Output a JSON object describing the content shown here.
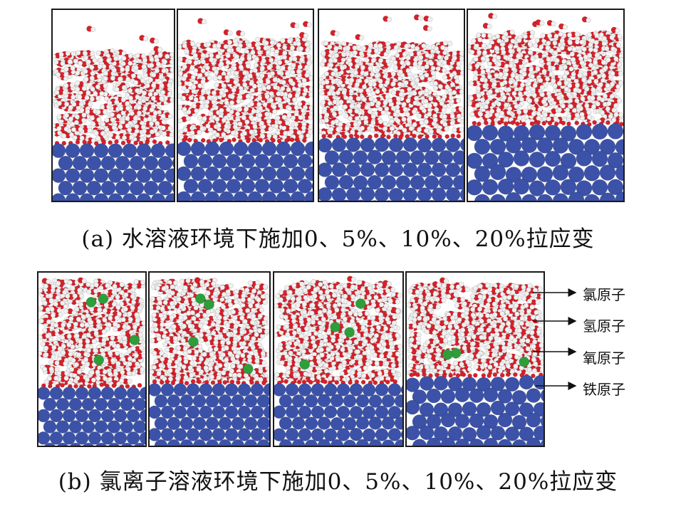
{
  "figure_a": {
    "caption": "(a) 水溶液环境下施加0、5%、10%、20%拉应变",
    "panels": [
      {
        "strain": "0"
      },
      {
        "strain": "5%"
      },
      {
        "strain": "10%"
      },
      {
        "strain": "20%"
      }
    ]
  },
  "figure_b": {
    "caption": "(b) 氯离子溶液环境下施加0、5%、10%、20%拉应变",
    "panels": [
      {
        "strain": "0"
      },
      {
        "strain": "5%"
      },
      {
        "strain": "10%"
      },
      {
        "strain": "20%"
      }
    ]
  },
  "legend": [
    {
      "label": "氯原子",
      "color": "#2e9e3a"
    },
    {
      "label": "氢原子",
      "color": "#f2f2f2"
    },
    {
      "label": "氧原子",
      "color": "#d8202a"
    },
    {
      "label": "铁原子",
      "color": "#3c52a8"
    }
  ],
  "colors": {
    "iron": "#3c52a8",
    "oxygen": "#d8202a",
    "hydrogen": "#f0f0f0",
    "chlorine": "#2e9e3a",
    "frame": "#1a1a1a"
  }
}
